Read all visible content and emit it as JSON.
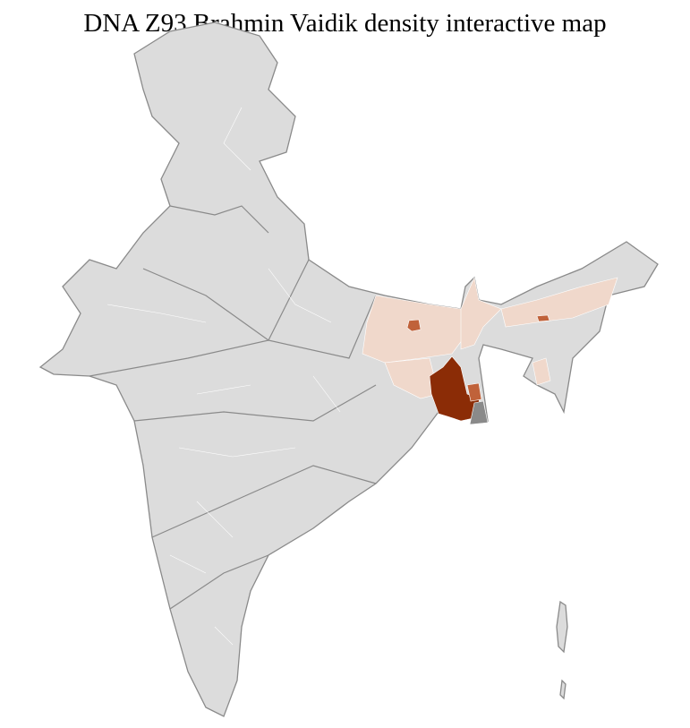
{
  "title": "DNA Z93 Brahmin Vaidik density interactive map",
  "map": {
    "region": "India",
    "colors": {
      "background_land": "#dcdcdc",
      "state_border": "#8a8a8a",
      "district_border": "#ffffff",
      "low_density": "#f0d8cb",
      "medium_density": "#c0623a",
      "high_density": "#8b2c06",
      "no_data_dark": "#8a8a8a"
    },
    "highlighted_regions": [
      {
        "area": "West Bengal (south)",
        "level": "high"
      },
      {
        "area": "Bihar district",
        "level": "medium"
      },
      {
        "area": "Assam district",
        "level": "medium"
      },
      {
        "area": "Bihar",
        "level": "low"
      },
      {
        "area": "Jharkhand (east)",
        "level": "low"
      },
      {
        "area": "North Bengal",
        "level": "low"
      },
      {
        "area": "Assam",
        "level": "low"
      },
      {
        "area": "Tripura",
        "level": "low"
      }
    ]
  }
}
